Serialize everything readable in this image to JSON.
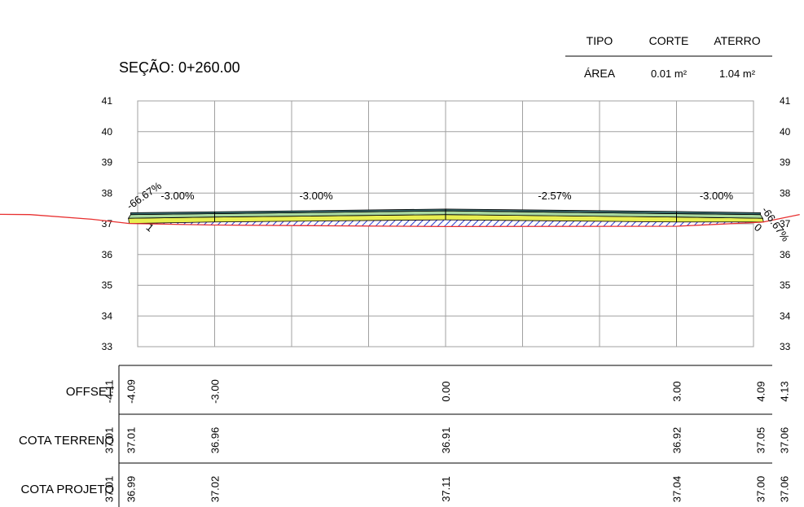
{
  "section_title": "SEÇÃO: 0+260.00",
  "summary_table": {
    "headers": {
      "type": "TIPO",
      "cut": "CORTE",
      "fill": "ATERRO"
    },
    "row": {
      "label": "ÁREA",
      "cut": "0.01 m²",
      "fill": "1.04 m²"
    }
  },
  "elevation_axis": {
    "min": 33,
    "max": 41,
    "labels": [
      "33",
      "34",
      "35",
      "36",
      "37",
      "38",
      "39",
      "40",
      "41"
    ]
  },
  "slope_labels": [
    {
      "text": "-66.67%",
      "x": -4.1,
      "y": 37.45,
      "rotate": -35
    },
    {
      "text": "-3.00%",
      "x": -3.7,
      "y": 37.8,
      "rotate": 0
    },
    {
      "text": "-3.00%",
      "x": -1.9,
      "y": 37.8,
      "rotate": 0
    },
    {
      "text": "-2.57%",
      "x": 1.2,
      "y": 37.8,
      "rotate": 0
    },
    {
      "text": "-3.00%",
      "x": 3.3,
      "y": 37.8,
      "rotate": 0
    },
    {
      "text": "-66.67%",
      "x": 4.1,
      "y": 37.45,
      "rotate": 55
    },
    {
      "text": "1",
      "x": -3.9,
      "y": 36.85,
      "rotate": 40
    },
    {
      "text": "0",
      "x": 4.0,
      "y": 36.85,
      "rotate": 40
    }
  ],
  "terrain_line": [
    {
      "x": -8.0,
      "y": 37.35
    },
    {
      "x": -5.4,
      "y": 37.3
    },
    {
      "x": -4.6,
      "y": 37.15
    },
    {
      "x": -4.11,
      "y": 37.01
    },
    {
      "x": -3.0,
      "y": 36.96
    },
    {
      "x": 0.0,
      "y": 36.91
    },
    {
      "x": 3.0,
      "y": 36.92
    },
    {
      "x": 4.09,
      "y": 37.05
    },
    {
      "x": 4.13,
      "y": 37.06
    },
    {
      "x": 4.6,
      "y": 37.3
    }
  ],
  "bands": [
    {
      "label": "OFFSET",
      "values": [
        {
          "x": -4.11,
          "text": "-4.11"
        },
        {
          "x": -4.09,
          "text": "-4.09"
        },
        {
          "x": -3.0,
          "text": "-3.00"
        },
        {
          "x": 0.0,
          "text": "0.00"
        },
        {
          "x": 3.0,
          "text": "3.00"
        },
        {
          "x": 4.09,
          "text": "4.09"
        },
        {
          "x": 4.13,
          "text": "4.13"
        }
      ]
    },
    {
      "label": "COTA TERRENO",
      "values": [
        {
          "x": -4.11,
          "text": "37.01"
        },
        {
          "x": -4.09,
          "text": "37.01"
        },
        {
          "x": -3.0,
          "text": "36.96"
        },
        {
          "x": 0.0,
          "text": "36.91"
        },
        {
          "x": 3.0,
          "text": "36.92"
        },
        {
          "x": 4.09,
          "text": "37.05"
        },
        {
          "x": 4.13,
          "text": "37.06"
        }
      ]
    },
    {
      "label": "COTA PROJETO",
      "values": [
        {
          "x": -4.11,
          "text": "37.01"
        },
        {
          "x": -4.09,
          "text": "36.99"
        },
        {
          "x": -3.0,
          "text": "37.02"
        },
        {
          "x": 0.0,
          "text": "37.11"
        },
        {
          "x": 3.0,
          "text": "37.04"
        },
        {
          "x": 4.09,
          "text": "37.00"
        },
        {
          "x": 4.13,
          "text": "37.06"
        }
      ]
    }
  ],
  "colors": {
    "grid": "#a0a0a0",
    "terrain": "#e83030",
    "asphalt": "#3a6f73",
    "base_layer": "#a8d8a0",
    "sub_base": "#e8ee50",
    "fill_hatch": "#2b3fd0",
    "fill_hatch_alt": "#c040c0"
  }
}
